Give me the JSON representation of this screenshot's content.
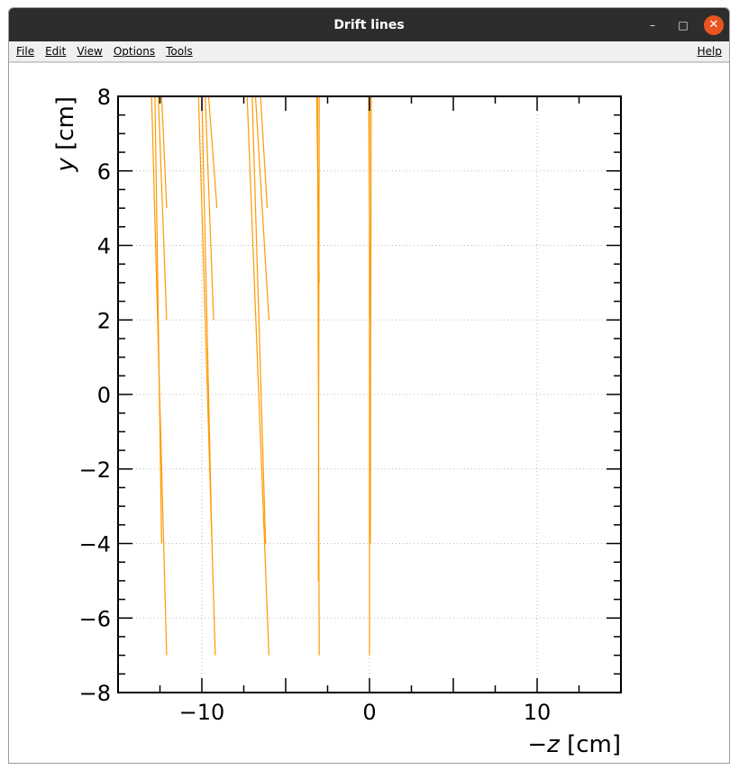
{
  "window": {
    "title": "Drift lines",
    "controls": {
      "minimize": "–",
      "maximize": "□",
      "close": "✕"
    }
  },
  "menubar": {
    "items": [
      "File",
      "Edit",
      "View",
      "Options",
      "Tools"
    ],
    "help": "Help"
  },
  "chart_data": {
    "type": "line",
    "xlabel_sign": "−",
    "xlabel_var": "z",
    "xlabel_unit": " [cm]",
    "ylabel_var": "y",
    "ylabel_unit": " [cm]",
    "xlim": [
      -15,
      15
    ],
    "ylim": [
      -8,
      8
    ],
    "x_ticks": [
      -10,
      0,
      10
    ],
    "x_tick_labels": [
      "−10",
      "0",
      "10"
    ],
    "y_ticks": [
      -8,
      -6,
      -4,
      -2,
      0,
      2,
      4,
      6,
      8
    ],
    "y_tick_labels": [
      "−8",
      "−6",
      "−4",
      "−2",
      "0",
      "2",
      "4",
      "6",
      "8"
    ],
    "grid": true,
    "line_color": "#ff9900",
    "series": [
      {
        "x": [
          -13.0,
          -12.1
        ],
        "y": [
          8,
          -7
        ]
      },
      {
        "x": [
          -12.8,
          -12.4
        ],
        "y": [
          8,
          -4
        ]
      },
      {
        "x": [
          -12.6,
          -12.1
        ],
        "y": [
          8,
          2
        ]
      },
      {
        "x": [
          -12.4,
          -12.1
        ],
        "y": [
          8,
          5
        ]
      },
      {
        "x": [
          -10.2,
          -9.2
        ],
        "y": [
          8,
          -7
        ]
      },
      {
        "x": [
          -10.0,
          -9.4
        ],
        "y": [
          8,
          -4
        ]
      },
      {
        "x": [
          -9.8,
          -9.3
        ],
        "y": [
          8,
          2
        ]
      },
      {
        "x": [
          -9.6,
          -9.1
        ],
        "y": [
          8,
          5
        ]
      },
      {
        "x": [
          -7.3,
          -6.0
        ],
        "y": [
          8,
          -7
        ]
      },
      {
        "x": [
          -7.0,
          -6.2
        ],
        "y": [
          8,
          -4
        ]
      },
      {
        "x": [
          -6.8,
          -6.0
        ],
        "y": [
          8,
          2
        ]
      },
      {
        "x": [
          -6.5,
          -6.1
        ],
        "y": [
          8,
          5
        ]
      },
      {
        "x": [
          -3.1,
          -3.0
        ],
        "y": [
          8,
          -7
        ]
      },
      {
        "x": [
          -3.0,
          -3.05
        ],
        "y": [
          8,
          -5
        ]
      },
      {
        "x": [
          -3.15,
          -3.0
        ],
        "y": [
          8,
          3
        ]
      },
      {
        "x": [
          0.0,
          0.0
        ],
        "y": [
          8,
          -7
        ]
      },
      {
        "x": [
          0.1,
          0.05
        ],
        "y": [
          8,
          -4
        ]
      },
      {
        "x": [
          -0.05,
          0.05
        ],
        "y": [
          8,
          2
        ]
      }
    ]
  }
}
